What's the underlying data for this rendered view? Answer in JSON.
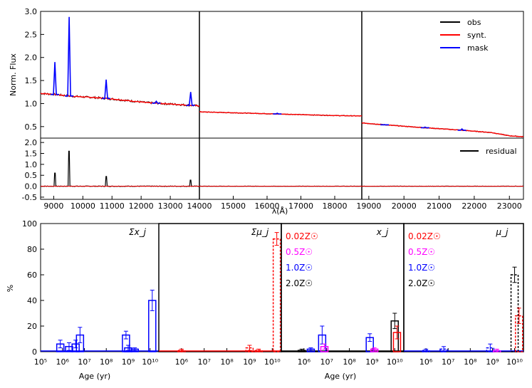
{
  "chart_data": [
    {
      "type": "line",
      "name": "spectral fit",
      "ylabel": "Norm. Flux",
      "ylim": [
        0.25,
        3.0
      ],
      "yticks": [
        "0.5",
        "1.0",
        "1.5",
        "2.0",
        "2.5",
        "3.0"
      ],
      "ytick_values": [
        0.5,
        1.0,
        1.5,
        2.0,
        2.5,
        3.0
      ],
      "legend": [
        "obs",
        "synt.",
        "mask"
      ],
      "colors": {
        "obs": "#000000",
        "synt": "#ff0000",
        "mask": "#0000ff"
      },
      "segments": [
        {
          "xlim": [
            8550,
            14000
          ],
          "continuum": [
            [
              8550,
              1.22
            ],
            [
              9000,
              1.2
            ],
            [
              9600,
              1.16
            ],
            [
              10400,
              1.13
            ],
            [
              11000,
              1.1
            ],
            [
              11600,
              1.06
            ],
            [
              12200,
              1.02
            ],
            [
              13000,
              0.99
            ],
            [
              14000,
              0.95
            ]
          ],
          "mask_peaks": [
            [
              9040,
              1.9
            ],
            [
              9530,
              2.88
            ],
            [
              10800,
              1.52
            ],
            [
              12520,
              1.05
            ],
            [
              13700,
              1.25
            ]
          ]
        },
        {
          "xlim": [
            14000,
            18800
          ],
          "continuum": [
            [
              14000,
              0.82
            ],
            [
              15000,
              0.8
            ],
            [
              16000,
              0.78
            ],
            [
              17000,
              0.76
            ],
            [
              18000,
              0.74
            ],
            [
              18800,
              0.73
            ]
          ],
          "mask_peaks": [
            [
              16300,
              0.79
            ]
          ]
        },
        {
          "xlim": [
            18800,
            23400
          ],
          "continuum": [
            [
              18800,
              0.58
            ],
            [
              19600,
              0.53
            ],
            [
              20500,
              0.48
            ],
            [
              21500,
              0.43
            ],
            [
              22500,
              0.37
            ],
            [
              23000,
              0.3
            ],
            [
              23400,
              0.28
            ]
          ],
          "mask_peaks": [
            [
              19450,
              0.54
            ],
            [
              20600,
              0.49
            ],
            [
              21650,
              0.45
            ]
          ]
        }
      ]
    },
    {
      "type": "line",
      "name": "residual",
      "ylim": [
        -0.6,
        2.2
      ],
      "yticks": [
        "-0.5",
        "0.0",
        "0.5",
        "1.0",
        "1.5",
        "2.0"
      ],
      "ytick_values": [
        -0.5,
        0.0,
        0.5,
        1.0,
        1.5,
        2.0
      ],
      "legend": [
        "residual"
      ],
      "peaks": [
        [
          9040,
          0.6
        ],
        [
          9530,
          1.6
        ],
        [
          10800,
          0.45
        ],
        [
          13700,
          0.28
        ]
      ],
      "xlabel": "λ(Å)",
      "xticks": [
        "9000",
        "10000",
        "11000",
        "12000",
        "13000",
        "14000",
        "15000",
        "16000",
        "17000",
        "18000",
        "19000",
        "20000",
        "21000",
        "22000",
        "23000"
      ],
      "xtick_values": [
        9000,
        10000,
        11000,
        12000,
        13000,
        14000,
        15000,
        16000,
        17000,
        18000,
        19000,
        20000,
        21000,
        22000,
        23000
      ]
    },
    {
      "type": "bar",
      "name": "population histograms",
      "ylabel": "%",
      "ylim": [
        0,
        100
      ],
      "yticks": [
        "0",
        "20",
        "40",
        "60",
        "80",
        "100"
      ],
      "ytick_values": [
        0,
        20,
        40,
        60,
        80,
        100
      ],
      "xlabel": "Age (yr)",
      "xlim_log10": [
        5,
        10.4
      ],
      "panel_titles": [
        "Σx_j",
        "Σμ_j",
        "x_j",
        "μ_j"
      ],
      "metallicities": [
        {
          "label": "0.02Z☉",
          "color": "#ff0000"
        },
        {
          "label": "0.5Z☉",
          "color": "#ff00ff"
        },
        {
          "label": "1.0Z☉",
          "color": "#0000ff"
        },
        {
          "label": "2.0Z☉",
          "color": "#000000"
        }
      ],
      "panels": [
        {
          "title": "Σx_j",
          "bars": [
            [
              5.9,
              6,
              3,
              "#0000ff"
            ],
            [
              6.3,
              4,
              3,
              "#0000ff"
            ],
            [
              6.6,
              6,
              3,
              "#0000ff"
            ],
            [
              6.8,
              13,
              6,
              "#0000ff"
            ],
            [
              8.9,
              13,
              3,
              "#0000ff"
            ],
            [
              9.0,
              3,
              2,
              "#0000ff"
            ],
            [
              9.3,
              2,
              1,
              "#0000ff"
            ],
            [
              10.1,
              40,
              8,
              "#0000ff"
            ]
          ]
        },
        {
          "title": "Σμ_j",
          "bars": [
            [
              6.0,
              1,
              1,
              "#ff0000"
            ],
            [
              9.0,
              3,
              2,
              "#ff0000"
            ],
            [
              9.4,
              1,
              1,
              "#ff0000"
            ],
            [
              10.2,
              88,
              5,
              "#ff0000"
            ]
          ]
        },
        {
          "title": "x_j",
          "bars": [
            [
              5.9,
              1,
              1,
              "#000000"
            ],
            [
              6.3,
              2,
              1,
              "#0000ff"
            ],
            [
              6.8,
              13,
              7,
              "#0000ff"
            ],
            [
              6.9,
              4,
              2,
              "#ff00ff"
            ],
            [
              8.9,
              11,
              3,
              "#0000ff"
            ],
            [
              9.1,
              2,
              1,
              "#ff00ff"
            ],
            [
              10.0,
              24,
              6,
              "#000000"
            ],
            [
              10.1,
              15,
              5,
              "#ff0000"
            ]
          ]
        },
        {
          "title": "μ_j",
          "bars": [
            [
              6.0,
              1,
              1,
              "#0000ff"
            ],
            [
              6.8,
              2,
              2,
              "#0000ff"
            ],
            [
              8.9,
              3,
              3,
              "#0000ff"
            ],
            [
              9.2,
              1,
              1,
              "#ff00ff"
            ],
            [
              10.0,
              60,
              6,
              "#000000"
            ],
            [
              10.2,
              28,
              6,
              "#ff0000"
            ]
          ]
        }
      ],
      "xticks": [
        "10⁵",
        "10⁶",
        "10⁷",
        "10⁸",
        "10⁹",
        "10¹⁰"
      ],
      "xtick_values": [
        5,
        6,
        7,
        8,
        9,
        10
      ]
    }
  ]
}
